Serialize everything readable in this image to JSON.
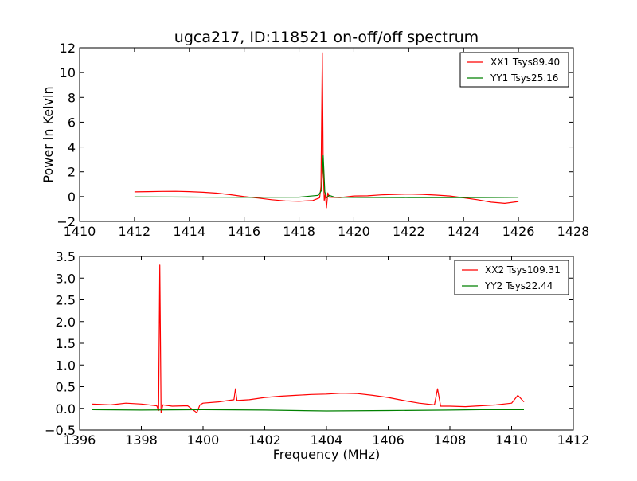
{
  "chart_data": [
    {
      "type": "line",
      "title": "ugca217, ID:118521 on-off/off spectrum",
      "xlabel": "",
      "ylabel": "Power in Kelvin",
      "xlim": [
        1410,
        1428
      ],
      "ylim": [
        -2,
        12
      ],
      "xticks": [
        "1410",
        "1412",
        "1414",
        "1416",
        "1418",
        "1420",
        "1422",
        "1424",
        "1426",
        "1428"
      ],
      "yticks": [
        "−2",
        "0",
        "2",
        "4",
        "6",
        "8",
        "10",
        "12"
      ],
      "legend_placement": "top-right",
      "grid": false,
      "series": [
        {
          "name": "XX1 Tsys89.40",
          "color": "#ff0000",
          "x": [
            1412.0,
            1412.5,
            1413.0,
            1413.5,
            1414.0,
            1414.5,
            1415.0,
            1415.5,
            1416.0,
            1416.5,
            1417.0,
            1417.5,
            1418.0,
            1418.5,
            1418.75,
            1418.8,
            1418.85,
            1418.88,
            1418.92,
            1418.96,
            1419.0,
            1419.05,
            1419.1,
            1419.5,
            1420.0,
            1420.5,
            1421.0,
            1421.5,
            1422.0,
            1422.5,
            1423.0,
            1423.5,
            1424.0,
            1424.5,
            1425.0,
            1425.5,
            1426.0
          ],
          "values": [
            0.38,
            0.4,
            0.42,
            0.43,
            0.4,
            0.35,
            0.28,
            0.15,
            0.0,
            -0.12,
            -0.25,
            -0.35,
            -0.38,
            -0.32,
            -0.1,
            0.8,
            11.6,
            2.5,
            -0.3,
            0.2,
            -0.9,
            0.3,
            -0.05,
            -0.08,
            0.05,
            0.06,
            0.14,
            0.18,
            0.2,
            0.18,
            0.12,
            0.05,
            -0.1,
            -0.25,
            -0.45,
            -0.55,
            -0.4
          ]
        },
        {
          "name": "YY1 Tsys25.16",
          "color": "#008000",
          "x": [
            1412.0,
            1414.0,
            1416.0,
            1418.0,
            1418.7,
            1418.82,
            1418.88,
            1418.94,
            1419.0,
            1419.1,
            1419.3,
            1420.0,
            1422.0,
            1424.0,
            1426.0
          ],
          "values": [
            -0.02,
            -0.04,
            -0.06,
            -0.05,
            0.1,
            0.5,
            3.3,
            0.4,
            -0.1,
            0.1,
            -0.05,
            -0.07,
            -0.08,
            -0.08,
            -0.06
          ]
        }
      ]
    },
    {
      "type": "line",
      "title": "",
      "xlabel": "Frequency (MHz)",
      "ylabel": "",
      "xlim": [
        1396,
        1412
      ],
      "ylim": [
        -0.5,
        3.5
      ],
      "xticks": [
        "1396",
        "1398",
        "1400",
        "1402",
        "1404",
        "1406",
        "1408",
        "1410",
        "1412"
      ],
      "yticks": [
        "−0.5",
        "0.0",
        "0.5",
        "1.0",
        "1.5",
        "2.0",
        "2.5",
        "3.0",
        "3.5"
      ],
      "legend_placement": "top-right",
      "grid": false,
      "series": [
        {
          "name": "XX2 Tsys109.31",
          "color": "#ff0000",
          "x": [
            1396.4,
            1397.0,
            1397.5,
            1398.0,
            1398.5,
            1398.56,
            1398.6,
            1398.64,
            1398.7,
            1399.0,
            1399.5,
            1399.8,
            1399.9,
            1400.0,
            1400.5,
            1401.0,
            1401.05,
            1401.1,
            1401.5,
            1402.0,
            1402.5,
            1403.0,
            1403.5,
            1404.0,
            1404.5,
            1405.0,
            1405.5,
            1406.0,
            1406.5,
            1407.0,
            1407.5,
            1407.6,
            1407.7,
            1408.0,
            1408.5,
            1409.0,
            1409.5,
            1410.0,
            1410.2,
            1410.4
          ],
          "values": [
            0.1,
            0.08,
            0.12,
            0.1,
            0.06,
            -0.05,
            3.3,
            -0.1,
            0.08,
            0.05,
            0.06,
            -0.1,
            0.08,
            0.12,
            0.15,
            0.2,
            0.45,
            0.18,
            0.2,
            0.25,
            0.28,
            0.3,
            0.32,
            0.33,
            0.35,
            0.34,
            0.3,
            0.25,
            0.18,
            0.12,
            0.08,
            0.45,
            0.05,
            0.05,
            0.04,
            0.06,
            0.08,
            0.12,
            0.3,
            0.15
          ]
        },
        {
          "name": "YY2 Tsys22.44",
          "color": "#008000",
          "x": [
            1396.4,
            1398.0,
            1400.0,
            1402.0,
            1404.0,
            1406.0,
            1408.0,
            1409.0,
            1410.4
          ],
          "values": [
            -0.03,
            -0.04,
            -0.03,
            -0.04,
            -0.06,
            -0.05,
            -0.04,
            -0.03,
            -0.03
          ]
        }
      ]
    }
  ]
}
